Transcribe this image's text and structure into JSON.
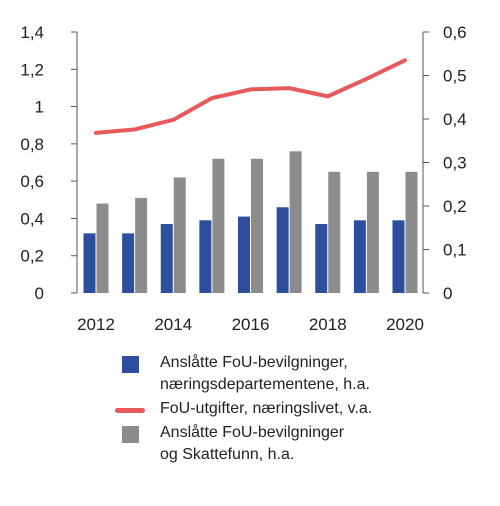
{
  "chart_data": {
    "type": "bar+line",
    "title": "",
    "xlabel": "",
    "ylabel": "",
    "categories": [
      "2012",
      "2013",
      "2014",
      "2015",
      "2016",
      "2017",
      "2018",
      "2019",
      "2020"
    ],
    "x_tick_labels": [
      "2012",
      "2014",
      "2016",
      "2018",
      "2020"
    ],
    "y_left": {
      "ylim": [
        0,
        1.4
      ],
      "ticks": [
        0,
        0.2,
        0.4,
        0.6,
        0.8,
        1.0,
        1.2,
        1.4
      ],
      "tick_labels": [
        "0",
        "0,2",
        "0,4",
        "0,6",
        "0,8",
        "1",
        "1,2",
        "1,4"
      ]
    },
    "y_right": {
      "ylim": [
        0,
        0.6
      ],
      "ticks": [
        0,
        0.1,
        0.2,
        0.3,
        0.4,
        0.5,
        0.6
      ],
      "tick_labels": [
        "0",
        "0,1",
        "0,2",
        "0,3",
        "0,4",
        "0,5",
        "0,6"
      ]
    },
    "grid": false,
    "legend_position": "bottom",
    "series": [
      {
        "name": "Anslåtte FoU-bevilgninger,\nnæringsdepartementene, h.a.",
        "type": "bar",
        "axis": "left",
        "color": "#2e4f9e",
        "values": [
          0.32,
          0.32,
          0.37,
          0.39,
          0.41,
          0.46,
          0.37,
          0.39,
          0.39
        ]
      },
      {
        "name": "Anslåtte FoU-bevilgninger\nog Skattefunn, h.a.",
        "type": "bar",
        "axis": "left",
        "color": "#8c8c8c",
        "values": [
          0.48,
          0.51,
          0.62,
          0.72,
          0.72,
          0.76,
          0.65,
          0.65,
          0.65
        ]
      },
      {
        "name": "FoU-utgifter, næringslivet, v.a.",
        "type": "line",
        "axis": "right",
        "color": "#e85a5a",
        "values": [
          0.368,
          0.376,
          0.398,
          0.448,
          0.468,
          0.471,
          0.452,
          0.492,
          0.535
        ]
      }
    ],
    "legend_order": [
      0,
      2,
      1
    ]
  }
}
